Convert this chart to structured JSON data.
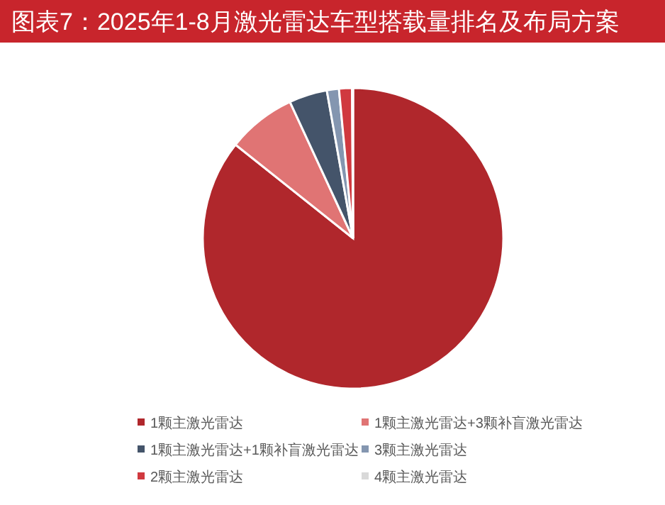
{
  "chart_data": {
    "type": "pie",
    "title": "图表7：2025年1-8月激光雷达车型搭载量排名及布局方案",
    "categories": [
      "1颗主激光雷达",
      "1颗主激光雷达+3颗补盲激光雷达",
      "1颗主激光雷达+1颗补盲激光雷达",
      "3颗主激光雷达",
      "2颗主激光雷达",
      "4颗主激光雷达"
    ],
    "values": [
      85.7,
      7.4,
      4.1,
      1.3,
      1.4,
      0.1
    ],
    "colors": [
      "#b0272c",
      "#e07474",
      "#44546a",
      "#8496b0",
      "#d0393f",
      "#d9d9d9"
    ],
    "legend": "bottom"
  }
}
